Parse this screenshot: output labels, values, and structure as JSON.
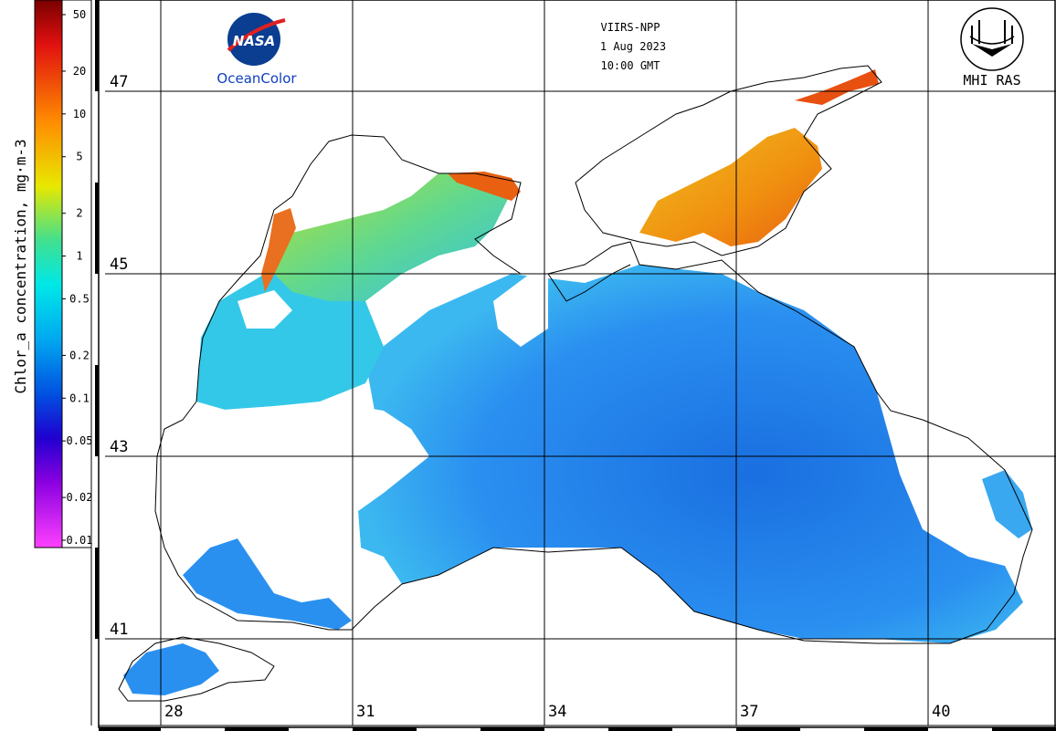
{
  "header": {
    "sensor": "VIIRS-NPP",
    "date": "1 Aug 2023",
    "time": "10:00 GMT",
    "nasa_logo_text": "NASA",
    "ocean_color_label": "OceanColor",
    "mhi_label": "MHI RAS"
  },
  "colorbar": {
    "label": "Chlor_a concentration, mg·m-3",
    "ticks": [
      "50",
      "20",
      "10",
      "5",
      "2",
      "1",
      "0.5",
      "0.2",
      "0.1",
      "0.05",
      "0.02",
      "0.01"
    ]
  },
  "grid": {
    "lat_labels": [
      "47",
      "45",
      "43",
      "41"
    ],
    "lon_labels": [
      "28",
      "31",
      "34",
      "37",
      "40"
    ]
  },
  "colors": {
    "sea_low": "#1e78e6",
    "sea_mid": "#3ab0f0",
    "coastal": "#5ad8d0",
    "high": "#e86a10",
    "nasa_blue": "#0b3d91"
  }
}
